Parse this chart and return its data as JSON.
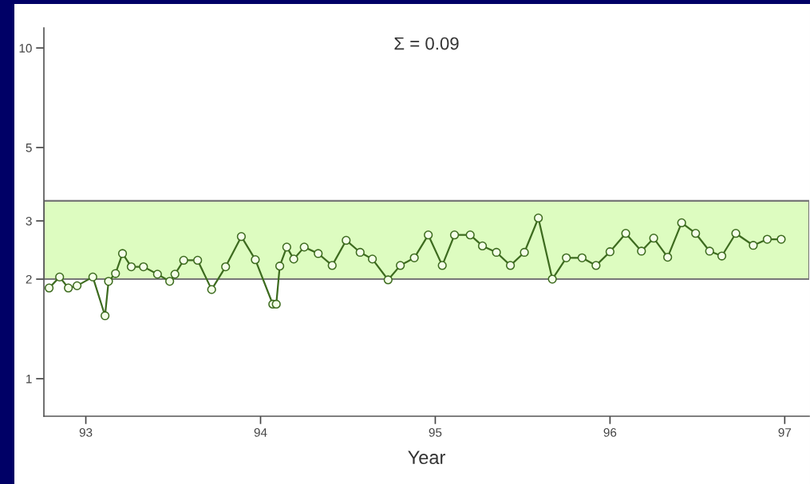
{
  "chart_data": {
    "type": "line",
    "title": "Σ = 0.09",
    "xlabel": "Year",
    "x": [
      92.79,
      92.85,
      92.9,
      92.95,
      93.04,
      93.11,
      93.13,
      93.17,
      93.21,
      93.26,
      93.33,
      93.41,
      93.48,
      93.51,
      93.56,
      93.64,
      93.72,
      93.8,
      93.89,
      93.97,
      94.07,
      94.09,
      94.11,
      94.15,
      94.19,
      94.25,
      94.33,
      94.41,
      94.49,
      94.57,
      94.64,
      94.73,
      94.8,
      94.88,
      94.96,
      95.04,
      95.11,
      95.2,
      95.27,
      95.35,
      95.43,
      95.51,
      95.59,
      95.67,
      95.75,
      95.84,
      95.92,
      96.0,
      96.09,
      96.18,
      96.25,
      96.33,
      96.41,
      96.49,
      96.57,
      96.64,
      96.72,
      96.82,
      96.9,
      96.98
    ],
    "series": [
      {
        "color": "#3d6b1f",
        "values": [
          1.88,
          2.03,
          1.88,
          1.91,
          2.03,
          1.55,
          1.97,
          2.08,
          2.39,
          2.18,
          2.18,
          2.07,
          1.97,
          2.07,
          2.28,
          2.28,
          1.86,
          2.18,
          2.69,
          2.29,
          1.68,
          1.68,
          2.19,
          2.5,
          2.3,
          2.5,
          2.39,
          2.2,
          2.62,
          2.41,
          2.3,
          1.99,
          2.2,
          2.32,
          2.72,
          2.2,
          2.72,
          2.72,
          2.52,
          2.41,
          2.2,
          2.41,
          3.06,
          2.0,
          2.32,
          2.32,
          2.2,
          2.42,
          2.75,
          2.43,
          2.66,
          2.33,
          2.96,
          2.75,
          2.43,
          2.35,
          2.75,
          2.53,
          2.64,
          2.64
        ]
      }
    ],
    "xlim": [
      92.76,
      97.14
    ],
    "xticks": [
      93,
      94,
      95,
      96,
      97
    ],
    "ylim": [
      0.77,
      11.5
    ],
    "yticks": [
      1,
      2,
      3,
      5,
      10
    ],
    "log": true,
    "bands": [
      {
        "axis": "y",
        "from": 2,
        "to": 3.45,
        "color": "#ddfcc0"
      }
    ],
    "marker": "circle",
    "line_style": "solid",
    "grid": false
  }
}
